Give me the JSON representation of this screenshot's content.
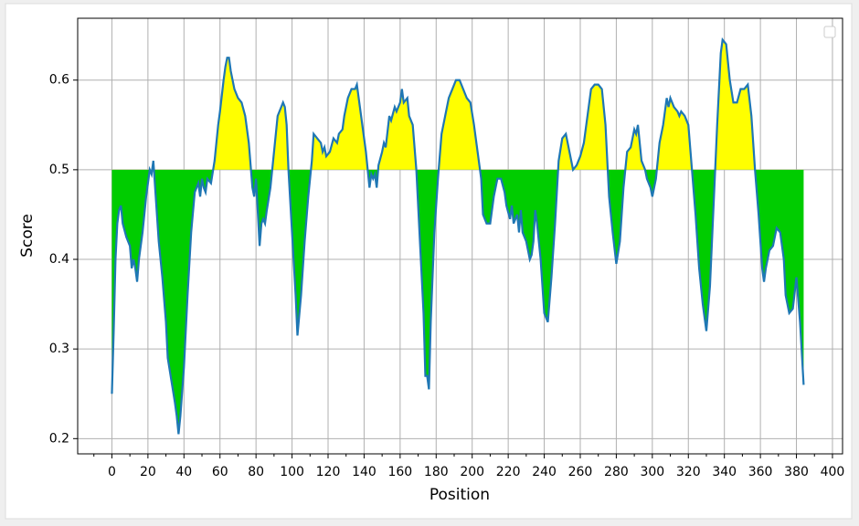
{
  "chart_data": {
    "type": "line",
    "xlabel": "Position",
    "ylabel": "Score",
    "x": [
      0,
      1,
      2,
      3,
      4,
      5,
      6,
      8,
      10,
      11,
      12,
      13,
      14,
      15,
      17,
      19,
      21,
      22,
      23,
      24,
      26,
      28,
      30,
      31,
      33,
      35,
      36,
      37,
      38,
      40,
      42,
      44,
      46,
      48,
      49,
      50,
      51,
      52,
      53,
      55,
      57,
      59,
      60,
      62,
      63,
      64,
      65,
      66,
      68,
      70,
      72,
      74,
      76,
      78,
      79,
      80,
      82,
      83,
      84,
      85,
      86,
      88,
      89,
      90,
      91,
      92,
      94,
      95,
      96,
      97,
      98,
      100,
      102,
      103,
      105,
      107,
      109,
      111,
      112,
      114,
      116,
      117,
      118,
      119,
      121,
      123,
      125,
      126,
      128,
      129,
      131,
      133,
      135,
      136,
      137,
      139,
      141,
      143,
      144,
      145,
      146,
      147,
      148,
      150,
      151,
      152,
      154,
      155,
      157,
      158,
      160,
      161,
      162,
      164,
      165,
      167,
      169,
      171,
      173,
      174,
      175,
      176,
      177,
      179,
      181,
      183,
      185,
      187,
      189,
      191,
      193,
      195,
      197,
      199,
      201,
      203,
      205,
      206,
      208,
      210,
      212,
      214,
      216,
      218,
      219,
      221,
      222,
      223,
      225,
      226,
      227,
      228,
      230,
      232,
      233,
      234,
      235,
      236,
      238,
      240,
      242,
      244,
      246,
      248,
      250,
      252,
      253,
      255,
      256,
      258,
      260,
      262,
      264,
      266,
      268,
      270,
      272,
      274,
      276,
      278,
      280,
      282,
      284,
      286,
      288,
      290,
      291,
      292,
      294,
      296,
      297,
      299,
      300,
      302,
      304,
      306,
      308,
      309,
      310,
      312,
      314,
      315,
      316,
      318,
      320,
      322,
      324,
      326,
      328,
      330,
      332,
      334,
      336,
      338,
      339,
      341,
      343,
      345,
      347,
      349,
      351,
      353,
      355,
      357,
      359,
      361,
      362,
      363,
      365,
      367,
      369,
      371,
      373,
      374,
      376,
      378,
      380,
      382,
      384
    ],
    "series": [
      {
        "color": "#1f77b4",
        "values": [
          0.25,
          0.32,
          0.4,
          0.44,
          0.455,
          0.46,
          0.44,
          0.425,
          0.415,
          0.39,
          0.4,
          0.39,
          0.375,
          0.4,
          0.43,
          0.47,
          0.5,
          0.495,
          0.51,
          0.48,
          0.42,
          0.38,
          0.33,
          0.29,
          0.265,
          0.24,
          0.225,
          0.205,
          0.225,
          0.28,
          0.36,
          0.43,
          0.475,
          0.485,
          0.47,
          0.49,
          0.48,
          0.475,
          0.49,
          0.485,
          0.51,
          0.55,
          0.565,
          0.6,
          0.615,
          0.625,
          0.625,
          0.61,
          0.59,
          0.58,
          0.575,
          0.56,
          0.53,
          0.48,
          0.47,
          0.49,
          0.415,
          0.44,
          0.445,
          0.44,
          0.455,
          0.48,
          0.5,
          0.52,
          0.54,
          0.56,
          0.57,
          0.575,
          0.57,
          0.55,
          0.5,
          0.43,
          0.36,
          0.315,
          0.36,
          0.42,
          0.47,
          0.51,
          0.54,
          0.535,
          0.53,
          0.52,
          0.525,
          0.515,
          0.52,
          0.535,
          0.53,
          0.54,
          0.545,
          0.56,
          0.58,
          0.59,
          0.59,
          0.595,
          0.58,
          0.55,
          0.52,
          0.48,
          0.495,
          0.49,
          0.495,
          0.48,
          0.505,
          0.52,
          0.53,
          0.525,
          0.56,
          0.555,
          0.57,
          0.565,
          0.575,
          0.59,
          0.575,
          0.58,
          0.56,
          0.55,
          0.5,
          0.42,
          0.34,
          0.27,
          0.27,
          0.255,
          0.33,
          0.43,
          0.49,
          0.54,
          0.56,
          0.58,
          0.59,
          0.6,
          0.6,
          0.59,
          0.58,
          0.575,
          0.55,
          0.52,
          0.49,
          0.45,
          0.44,
          0.44,
          0.47,
          0.49,
          0.49,
          0.475,
          0.46,
          0.445,
          0.46,
          0.44,
          0.45,
          0.43,
          0.455,
          0.43,
          0.42,
          0.4,
          0.405,
          0.42,
          0.455,
          0.44,
          0.4,
          0.34,
          0.33,
          0.38,
          0.44,
          0.51,
          0.535,
          0.54,
          0.53,
          0.51,
          0.5,
          0.505,
          0.515,
          0.53,
          0.56,
          0.59,
          0.595,
          0.595,
          0.59,
          0.55,
          0.47,
          0.43,
          0.395,
          0.42,
          0.48,
          0.52,
          0.525,
          0.545,
          0.54,
          0.55,
          0.51,
          0.5,
          0.49,
          0.48,
          0.47,
          0.49,
          0.53,
          0.55,
          0.58,
          0.57,
          0.58,
          0.57,
          0.565,
          0.56,
          0.565,
          0.56,
          0.55,
          0.5,
          0.45,
          0.39,
          0.35,
          0.32,
          0.37,
          0.46,
          0.55,
          0.63,
          0.645,
          0.64,
          0.6,
          0.575,
          0.575,
          0.59,
          0.59,
          0.595,
          0.56,
          0.5,
          0.45,
          0.39,
          0.375,
          0.39,
          0.41,
          0.415,
          0.435,
          0.43,
          0.4,
          0.36,
          0.34,
          0.345,
          0.38,
          0.33,
          0.26
        ]
      }
    ],
    "threshold": 0.5,
    "above_color": "#ffff00",
    "below_color": "#00cc00",
    "xlim": [
      -19,
      405.6
    ],
    "ylim": [
      0.183,
      0.669
    ],
    "xticks": [
      0,
      20,
      40,
      60,
      80,
      100,
      120,
      140,
      160,
      180,
      200,
      220,
      240,
      260,
      280,
      300,
      320,
      340,
      360,
      380,
      400
    ],
    "xminorticks": [
      -10,
      10,
      30,
      50,
      70,
      90,
      110,
      130,
      150,
      170,
      190,
      210,
      230,
      250,
      270,
      290,
      310,
      330,
      350,
      370,
      390
    ],
    "yticks": [
      0.2,
      0.3,
      0.4,
      0.5,
      0.6
    ],
    "grid": true
  }
}
